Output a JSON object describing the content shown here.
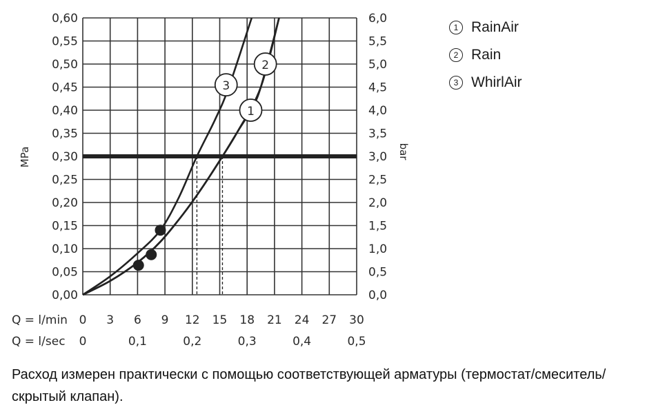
{
  "chart_data": {
    "type": "line",
    "y_left_label": "MPa",
    "y_right_label": "bar",
    "y_left_ticks": [
      "0,00",
      "0,05",
      "0,10",
      "0,15",
      "0,20",
      "0,25",
      "0,30",
      "0,35",
      "0,40",
      "0,45",
      "0,50",
      "0,55",
      "0,60"
    ],
    "y_right_ticks": [
      "0,0",
      "0,5",
      "1,0",
      "1,5",
      "2,0",
      "2,5",
      "3,0",
      "3,5",
      "4,0",
      "4,5",
      "5,0",
      "5,5",
      "6,0"
    ],
    "ylim": [
      0,
      0.6
    ],
    "xlim": [
      0,
      30
    ],
    "x_lmin_label": "Q = l/min",
    "x_lmin_ticks": [
      "0",
      "3",
      "6",
      "9",
      "12",
      "15",
      "18",
      "21",
      "24",
      "27",
      "30"
    ],
    "x_lsec_label": "Q = l/sec",
    "x_lsec_ticks": [
      "0",
      "0,1",
      "0,2",
      "0,3",
      "0,4",
      "0,5"
    ],
    "reference_line_mpa": 0.3,
    "series": [
      {
        "name": "1",
        "marker_label": "1",
        "x": [
          0,
          3,
          6,
          8.5,
          11,
          13,
          15.3,
          17,
          18.4,
          19.5,
          21.5
        ],
        "y": [
          0,
          0.03,
          0.07,
          0.115,
          0.175,
          0.23,
          0.3,
          0.355,
          0.4,
          0.45,
          0.6
        ],
        "start_point": {
          "x": 7.5,
          "y": 0.087
        },
        "label_at": {
          "x": 18.4,
          "y": 0.4
        }
      },
      {
        "name": "2",
        "marker_label": "2",
        "x": [
          0,
          3,
          6,
          8.5,
          11,
          13,
          15.3,
          17,
          19.5,
          21.5
        ],
        "y": [
          0,
          0.03,
          0.07,
          0.115,
          0.175,
          0.23,
          0.3,
          0.355,
          0.45,
          0.6
        ],
        "start_point": {
          "x": 6.1,
          "y": 0.064
        },
        "label_at": {
          "x": 20,
          "y": 0.5
        }
      },
      {
        "name": "3",
        "marker_label": "3",
        "x": [
          0,
          3,
          6,
          8.5,
          10.5,
          12.5,
          14.5,
          16,
          18.5
        ],
        "y": [
          0,
          0.04,
          0.09,
          0.14,
          0.21,
          0.3,
          0.38,
          0.45,
          0.6
        ],
        "start_point": {
          "x": 8.5,
          "y": 0.14
        },
        "label_at": {
          "x": 15.7,
          "y": 0.455
        }
      }
    ],
    "dashed_drops_x": [
      12.5,
      15.3
    ],
    "grid": true,
    "legend_position": "top-right"
  },
  "legend": [
    {
      "num": "1",
      "label": "RainAir"
    },
    {
      "num": "2",
      "label": "Rain"
    },
    {
      "num": "3",
      "label": "WhirlAir"
    }
  ],
  "note": "Расход измерен практически с помощью соответствующей арматуры (термостат/смеситель/скрытый клапан)."
}
